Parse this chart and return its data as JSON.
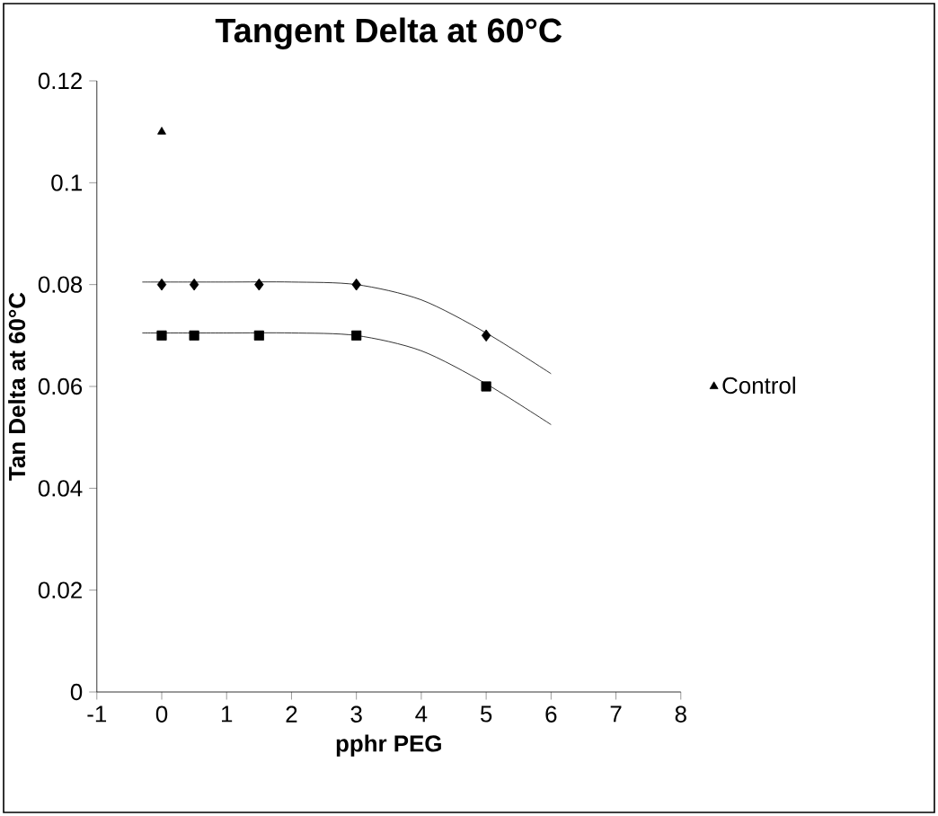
{
  "chart_data": {
    "type": "scatter",
    "title": "Tangent Delta at 60°C",
    "xlabel": "pphr PEG",
    "ylabel": "Tan Delta at 60°C",
    "xlim": [
      -1,
      8
    ],
    "xticks": [
      -1,
      0,
      1,
      2,
      3,
      4,
      5,
      6,
      7,
      8
    ],
    "ylim": [
      0,
      0.12
    ],
    "yticks": [
      0,
      0.02,
      0.04,
      0.06,
      0.08,
      0.1,
      0.12
    ],
    "grid": false,
    "legend": "right",
    "series": [
      {
        "color": "#000000",
        "marker": "square",
        "x": [
          0,
          0.5,
          1.5,
          3,
          5
        ],
        "values": [
          0.07,
          0.07,
          0.07,
          0.07,
          0.06
        ]
      },
      {
        "color": "#000000",
        "marker": "diamond",
        "x": [
          0,
          0.5,
          1.5,
          3,
          5
        ],
        "values": [
          0.08,
          0.08,
          0.08,
          0.08,
          0.07
        ]
      },
      {
        "name": "Control",
        "color": "#000000",
        "marker": "triangle",
        "x": [
          0
        ],
        "values": [
          0.11
        ]
      },
      {
        "type": "line",
        "color": "#000000",
        "marker": "none",
        "x": [
          -0.3,
          0,
          1,
          2,
          3,
          4,
          5,
          6
        ],
        "values": [
          0.0705,
          0.0705,
          0.0705,
          0.0705,
          0.07,
          0.067,
          0.0605,
          0.0525
        ]
      },
      {
        "type": "line",
        "color": "#000000",
        "marker": "none",
        "x": [
          -0.3,
          0,
          1,
          2,
          3,
          4,
          5,
          6
        ],
        "values": [
          0.0805,
          0.0805,
          0.0805,
          0.0805,
          0.08,
          0.077,
          0.0705,
          0.0625
        ]
      }
    ]
  }
}
